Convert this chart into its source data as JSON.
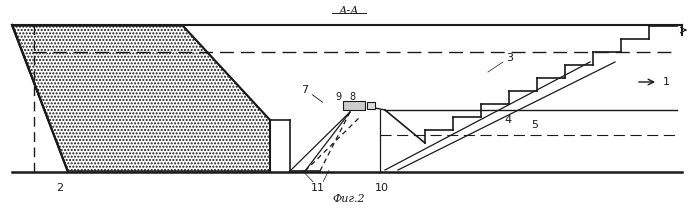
{
  "title": "А-А",
  "caption": "Фиг.2",
  "bg_color": "#ffffff",
  "line_color": "#1a1a1a",
  "fig_width": 6.98,
  "fig_height": 2.1,
  "dpi": 100
}
